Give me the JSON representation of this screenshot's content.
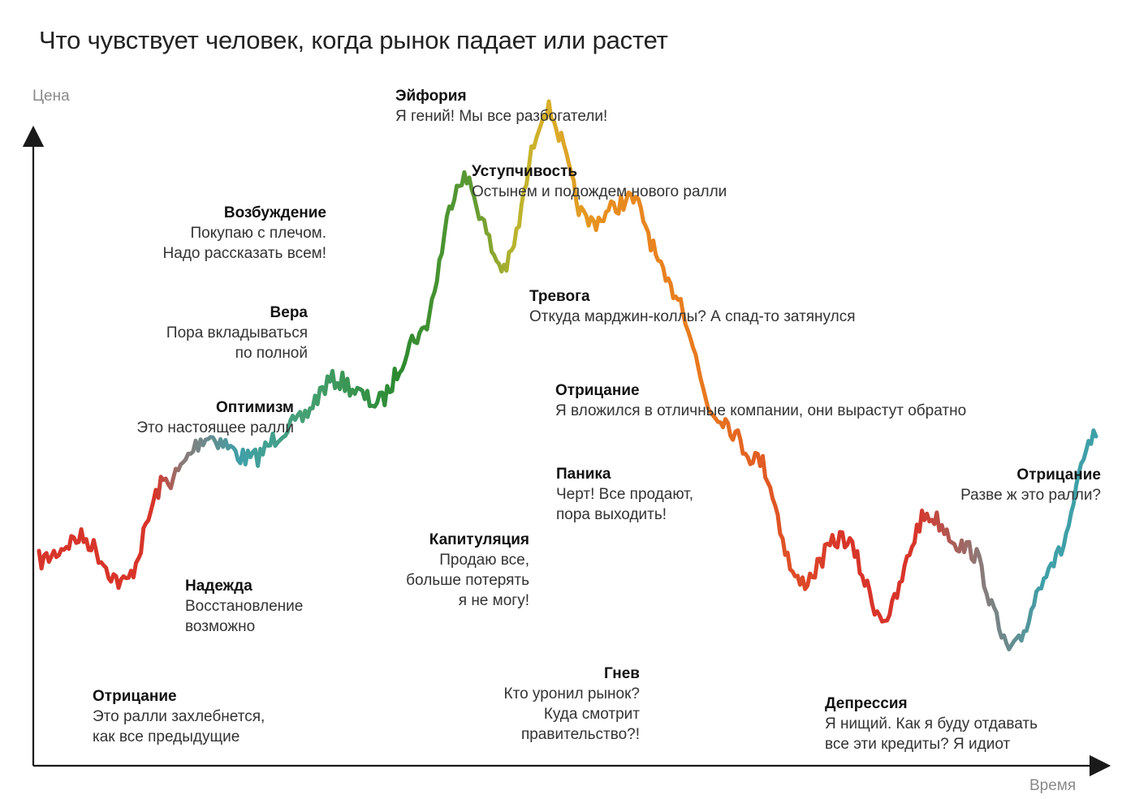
{
  "title": "Что чувствует человек, когда рынок падает или растет",
  "axes": {
    "y_label": "Цена",
    "x_label": "Время"
  },
  "stages": [
    {
      "id": "denial-start",
      "heading": "Отрицание",
      "lines": [
        "Это ралли захлебнется,",
        "как все предыдущие"
      ]
    },
    {
      "id": "hope",
      "heading": "Надежда",
      "lines": [
        "Восстановление",
        "возможно"
      ]
    },
    {
      "id": "optimism",
      "heading": "Оптимизм",
      "lines": [
        "Это настоящее ралли"
      ]
    },
    {
      "id": "belief",
      "heading": "Вера",
      "lines": [
        "Пора вкладываться",
        "по полной"
      ]
    },
    {
      "id": "thrill",
      "heading": "Возбуждение",
      "lines": [
        "Покупаю с плечом.",
        "Надо рассказать всем!"
      ]
    },
    {
      "id": "euphoria",
      "heading": "Эйфория",
      "lines": [
        "Я гений! Мы все разбогатели!"
      ]
    },
    {
      "id": "complacency",
      "heading": "Уступчивость",
      "lines": [
        "Остынем и подождем нового ралли"
      ]
    },
    {
      "id": "anxiety",
      "heading": "Тревога",
      "lines": [
        "Откуда марджин-коллы? А спад-то затянулся"
      ]
    },
    {
      "id": "denial-mid",
      "heading": "Отрицание",
      "lines": [
        "Я вложился в отличные компании, они вырастут обратно"
      ]
    },
    {
      "id": "panic",
      "heading": "Паника",
      "lines": [
        "Черт! Все продают,",
        "пора выходить!"
      ]
    },
    {
      "id": "capitulation",
      "heading": "Капитуляция",
      "lines": [
        "Продаю все,",
        "больше потерять",
        "я не могу!"
      ]
    },
    {
      "id": "anger",
      "heading": "Гнев",
      "lines": [
        "Кто уронил рынок?",
        "Куда смотрит",
        "правительство?!"
      ]
    },
    {
      "id": "depression",
      "heading": "Депрессия",
      "lines": [
        "Я нищий. Как я буду отдавать",
        "все эти кредиты? Я идиот"
      ]
    },
    {
      "id": "denial-end",
      "heading": "Отрицание",
      "lines": [
        "Разве ж это ралли?"
      ]
    }
  ],
  "colors": {
    "red": "#d8352a",
    "grey": "#8c7a78",
    "teal": "#3fa0a8",
    "green": "#3f8f3a",
    "dark_green": "#2c8a2f",
    "yellow": "#d8b02a",
    "orange": "#e8901f",
    "axis": "#1a1a1a"
  },
  "chart_data": {
    "type": "line",
    "title": "Что чувствует человек, когда рынок падает или растет",
    "xlabel": "Время",
    "ylabel": "Цена",
    "x_ticks": false,
    "y_ticks": false,
    "series": [
      {
        "x": [
          0,
          4,
          8,
          12,
          16,
          20,
          24,
          28,
          32,
          36,
          40,
          44,
          48,
          52,
          56,
          60,
          64,
          68,
          72,
          76,
          80,
          84,
          88,
          92,
          96,
          100
        ],
        "y": [
          20,
          24,
          16,
          34,
          42,
          38,
          44,
          52,
          48,
          60,
          88,
          72,
          100,
          80,
          84,
          68,
          46,
          38,
          16,
          24,
          10,
          28,
          22,
          4,
          20,
          42
        ]
      }
    ]
  }
}
